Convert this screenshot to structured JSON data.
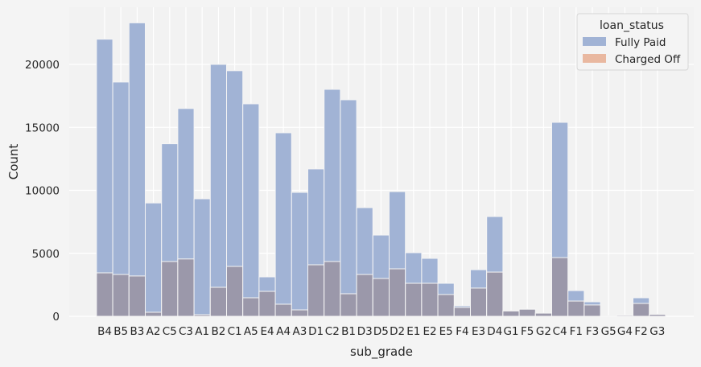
{
  "chart_data": {
    "type": "bar",
    "subtype": "histogram-layered",
    "xlabel": "sub_grade",
    "ylabel": "Count",
    "ylim": [
      0,
      24500
    ],
    "yticks": [
      0,
      5000,
      10000,
      15000,
      20000
    ],
    "grid": true,
    "legend": {
      "title": "loan_status",
      "placement": "top-right"
    },
    "categories": [
      "B4",
      "B5",
      "B3",
      "A2",
      "C5",
      "C3",
      "A1",
      "B2",
      "C1",
      "A5",
      "E4",
      "A4",
      "A3",
      "D1",
      "C2",
      "B1",
      "D3",
      "D5",
      "D2",
      "E1",
      "E2",
      "E5",
      "F4",
      "E3",
      "D4",
      "G1",
      "F5",
      "G2",
      "C4",
      "F1",
      "F3",
      "G5",
      "G4",
      "F2",
      "G3"
    ],
    "series": [
      {
        "name": "Fully Paid",
        "color": "#a1b3d5",
        "values": [
          22000,
          18600,
          23300,
          9000,
          13700,
          16500,
          9330,
          20000,
          19500,
          16870,
          3130,
          14570,
          9840,
          11700,
          18020,
          17190,
          8630,
          6450,
          9900,
          5050,
          4600,
          2620,
          830,
          3700,
          7920,
          450,
          580,
          255,
          15400,
          2040,
          1150,
          40,
          90,
          1470,
          170
        ]
      },
      {
        "name": "Charged Off",
        "color": "#e9b8a0",
        "overlap_color": "#9b98aa",
        "values": [
          3450,
          3320,
          3200,
          320,
          4350,
          4550,
          130,
          2300,
          3960,
          1470,
          1980,
          960,
          510,
          4090,
          4350,
          1790,
          3320,
          3000,
          3770,
          2620,
          2620,
          1730,
          700,
          2240,
          3510,
          420,
          560,
          250,
          4660,
          1210,
          900,
          30,
          80,
          1020,
          150
        ]
      }
    ]
  }
}
